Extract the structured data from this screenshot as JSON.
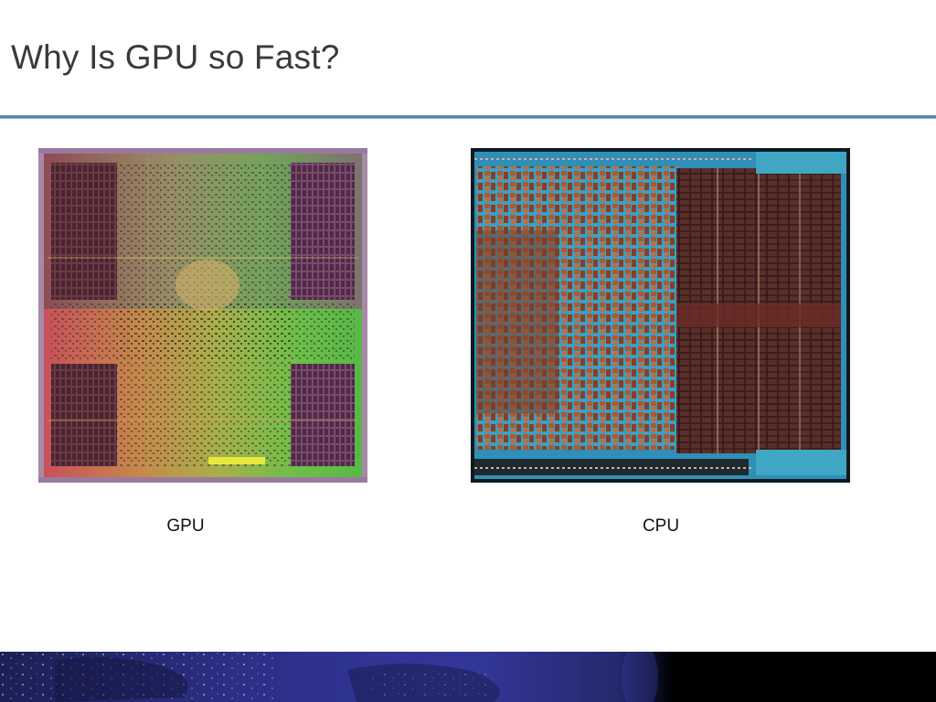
{
  "slide": {
    "title": "Why Is GPU so Fast?",
    "captions": {
      "gpu": "GPU",
      "cpu": "CPU"
    }
  },
  "colors": {
    "title_text": "#3a3a3a",
    "rule_accent": "#4d78ad",
    "banner_dark": "#000000",
    "banner_blue": "#2a2f7a"
  },
  "images": {
    "gpu": "gpu-die-photo",
    "cpu": "cpu-die-photo",
    "footer": "earth-night-banner"
  }
}
